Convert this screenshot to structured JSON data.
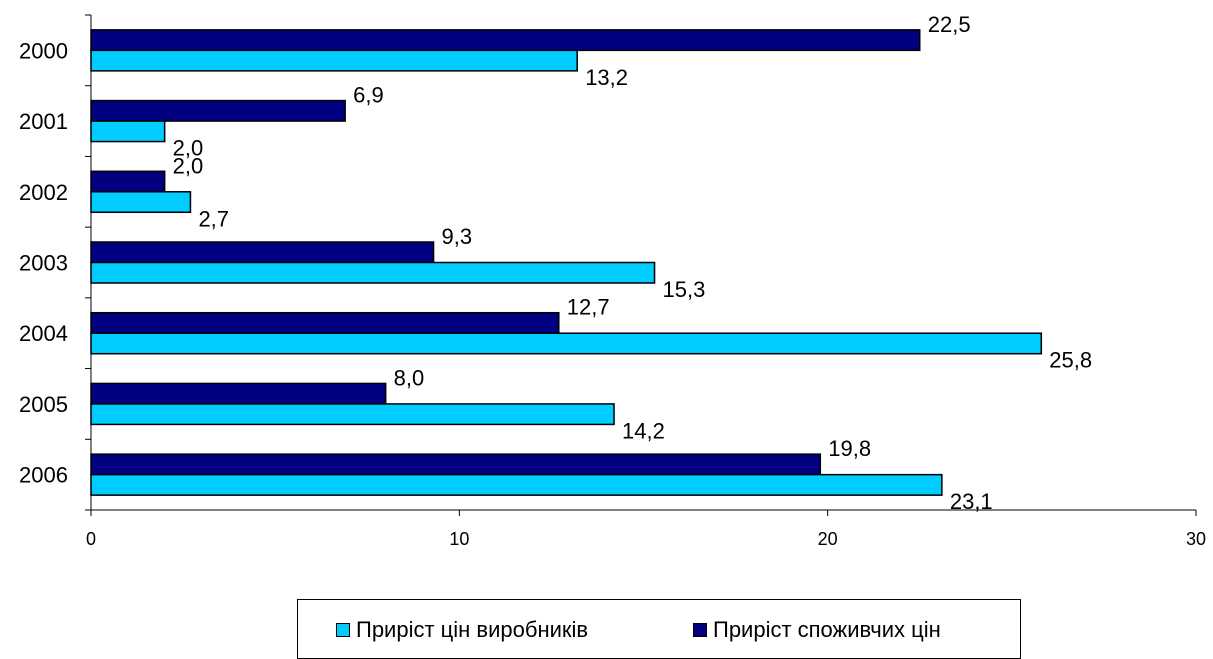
{
  "chart_data": {
    "type": "bar",
    "orientation": "horizontal",
    "categories": [
      "2000",
      "2001",
      "2002",
      "2003",
      "2004",
      "2005",
      "2006"
    ],
    "series": [
      {
        "name": "Приріст споживчих цін",
        "color": "#000080",
        "values": [
          22.5,
          6.9,
          2.0,
          9.3,
          12.7,
          8.0,
          19.8
        ],
        "labels": [
          "22,5",
          "6,9",
          "2,0",
          "9,3",
          "12,7",
          "8,0",
          "19,8"
        ]
      },
      {
        "name": "Приріст цін виробників",
        "color": "#00CCFF",
        "values": [
          13.2,
          2.0,
          2.7,
          15.3,
          25.8,
          14.2,
          23.1
        ],
        "labels": [
          "13,2",
          "2,0",
          "2,7",
          "15,3",
          "25,8",
          "14,2",
          "23,1"
        ]
      }
    ],
    "xlim": [
      0,
      30
    ],
    "xticks": [
      0,
      10,
      20,
      30
    ],
    "title": "",
    "xlabel": "",
    "ylabel": "",
    "grid": false,
    "legend_position": "bottom"
  },
  "legend": {
    "item1": "Приріст цін виробників",
    "item2": "Приріст споживчих цін"
  }
}
